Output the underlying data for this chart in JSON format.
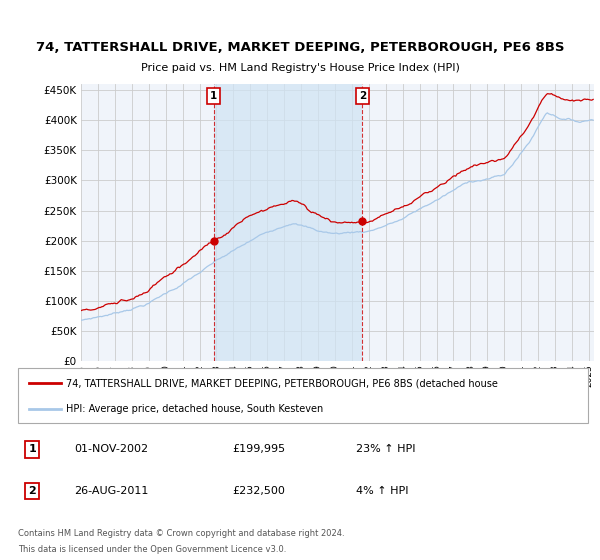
{
  "title_line1": "74, TATTERSHALL DRIVE, MARKET DEEPING, PETERBOROUGH, PE6 8BS",
  "title_line2": "Price paid vs. HM Land Registry's House Price Index (HPI)",
  "hpi_color": "#a8c8e8",
  "hpi_fill_color": "#ccddf0",
  "price_color": "#cc0000",
  "background_color": "#ffffff",
  "plot_bg_color": "#f0f4fa",
  "grid_color": "#cccccc",
  "shade_color": "#d0e4f4",
  "ylim": [
    0,
    460000
  ],
  "yticks": [
    0,
    50000,
    100000,
    150000,
    200000,
    250000,
    300000,
    350000,
    400000,
    450000
  ],
  "xlim_start": 1995.0,
  "xlim_end": 2025.3,
  "sale1_x": 2002.83,
  "sale1_y": 199995,
  "sale1_label": "1",
  "sale1_date": "01-NOV-2002",
  "sale1_price": "£199,995",
  "sale1_hpi": "23% ↑ HPI",
  "sale2_x": 2011.62,
  "sale2_y": 232500,
  "sale2_label": "2",
  "sale2_date": "26-AUG-2011",
  "sale2_price": "£232,500",
  "sale2_hpi": "4% ↑ HPI",
  "legend_line1": "74, TATTERSHALL DRIVE, MARKET DEEPING, PETERBOROUGH, PE6 8BS (detached house",
  "legend_line2": "HPI: Average price, detached house, South Kesteven",
  "footer_line1": "Contains HM Land Registry data © Crown copyright and database right 2024.",
  "footer_line2": "This data is licensed under the Open Government Licence v3.0.",
  "n_points": 370
}
